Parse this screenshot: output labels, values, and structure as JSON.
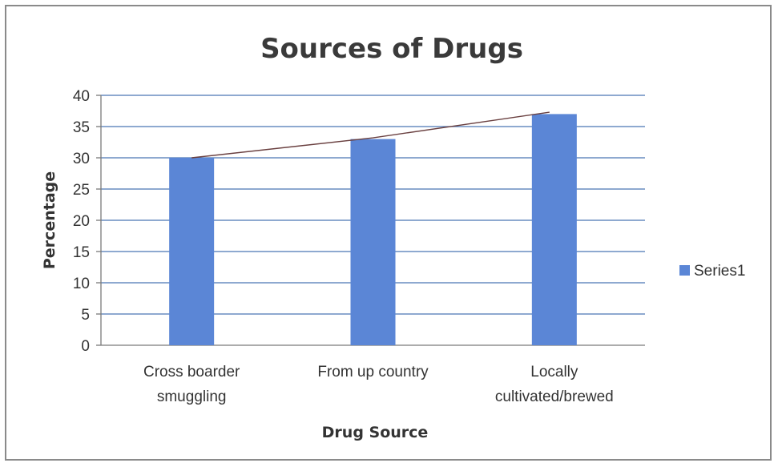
{
  "chart_data": {
    "type": "bar",
    "title": "Sources of Drugs",
    "xlabel": "Drug Source",
    "ylabel": "Percentage",
    "categories": [
      [
        "Cross boarder",
        "smuggling"
      ],
      [
        "From up country"
      ],
      [
        "Locally",
        "cultivated/brewed"
      ]
    ],
    "series": [
      {
        "name": "Series1",
        "values": [
          30,
          33,
          37
        ]
      }
    ],
    "trendline": [
      30,
      33.2,
      37.3
    ],
    "ylim": [
      0,
      40
    ],
    "yticks": [
      "0",
      "5",
      "10",
      "15",
      "20",
      "25",
      "30",
      "35",
      "40"
    ],
    "grid": true,
    "legend": "right",
    "colors": {
      "bar": "#5b86d6",
      "trend": "#6a4040",
      "grid": "#4a76b5",
      "axis": "#7a7a7a"
    }
  }
}
